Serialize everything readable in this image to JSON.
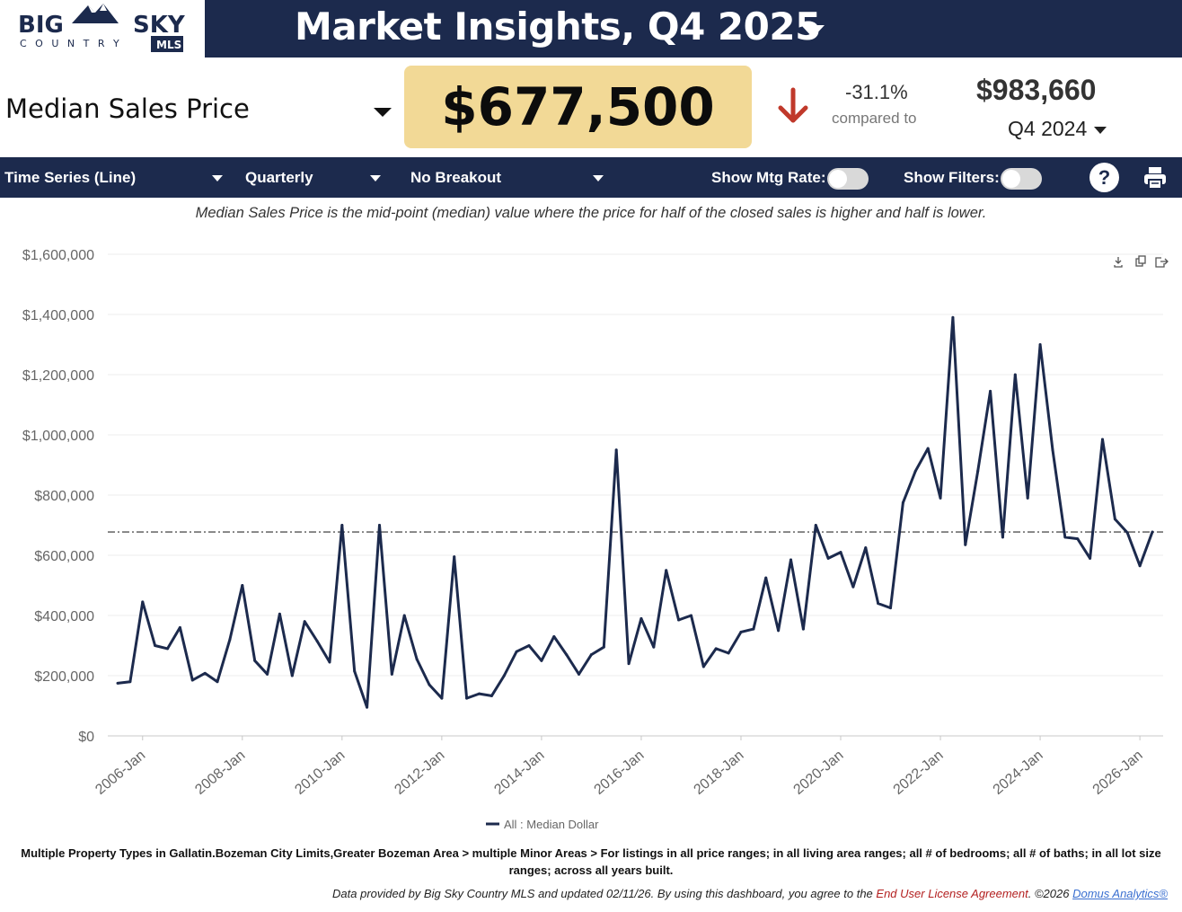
{
  "logo": {
    "line1": "BIG",
    "line1b": "SKY",
    "line2": "C O U N T R Y",
    "badge": "MLS"
  },
  "header": {
    "title": "Market Insights,  Q4  2025"
  },
  "metric": {
    "name": "Median Sales Price",
    "value": "$677,500",
    "change_pct": "-31.1%",
    "compared_label": "compared to",
    "compare_value": "$983,660",
    "compare_period": "Q4  2024",
    "trend": "down",
    "trend_color": "#c0392b"
  },
  "toolbar": {
    "chart_type": "Time Series (Line)",
    "interval": "Quarterly",
    "breakout": "No Breakout",
    "mtg_rate_label": "Show Mtg Rate:",
    "filters_label": "Show Filters:",
    "help_label": "?"
  },
  "description": "Median Sales Price is the mid-point (median) value where the price for half of the closed sales is higher and half is lower.",
  "chart_data": {
    "type": "line",
    "title": "",
    "xlabel": "",
    "ylabel": "",
    "ylim": [
      0,
      1600000
    ],
    "y_ticks": [
      0,
      200000,
      400000,
      600000,
      800000,
      1000000,
      1200000,
      1400000,
      1600000
    ],
    "y_tick_labels": [
      "$0",
      "$200,000",
      "$400,000",
      "$600,000",
      "$800,000",
      "$1,000,000",
      "$1,200,000",
      "$1,400,000",
      "$1,600,000"
    ],
    "x_tick_labels": [
      "2006-Jan",
      "2008-Jan",
      "2010-Jan",
      "2012-Jan",
      "2014-Jan",
      "2016-Jan",
      "2018-Jan",
      "2020-Jan",
      "2022-Jan",
      "2024-Jan",
      "2026-Jan"
    ],
    "x_start": "2005-Q3",
    "reference_line": 677500,
    "series": [
      {
        "name": "All : Median Dollar",
        "color": "#1c2a4d",
        "values": [
          175000,
          180000,
          445000,
          300000,
          290000,
          360000,
          185000,
          208000,
          180000,
          320000,
          500000,
          250000,
          205000,
          405000,
          200000,
          380000,
          315000,
          245000,
          700000,
          215000,
          95000,
          700000,
          205000,
          400000,
          255000,
          170000,
          125000,
          595000,
          125000,
          140000,
          133000,
          200000,
          280000,
          300000,
          250000,
          330000,
          270000,
          205000,
          270000,
          295000,
          950000,
          240000,
          390000,
          295000,
          550000,
          385000,
          400000,
          230000,
          290000,
          275000,
          345000,
          355000,
          525000,
          350000,
          585000,
          355000,
          700000,
          590000,
          610000,
          495000,
          625000,
          440000,
          425000,
          775000,
          880000,
          955000,
          790000,
          1390000,
          635000,
          880000,
          1145000,
          660000,
          1200000,
          790000,
          1300000,
          950000,
          660000,
          655000,
          590000,
          985000,
          720000,
          675000,
          565000,
          677500
        ]
      }
    ],
    "legend": "bottom-center"
  },
  "footnote": "Multiple Property Types in Gallatin.Bozeman City Limits,Greater Bozeman Area > multiple Minor Areas > For listings in all price ranges; in all living area ranges; all # of bedrooms; all # of baths; in all lot size ranges; across all years built.",
  "credits": {
    "text": "Data provided by Big Sky Country MLS and updated 02/11/26.  By using this dashboard, you agree to the ",
    "eula": "End User License Agreement",
    "copyright": ".  ©2026 ",
    "domus": "Domus Analytics®"
  },
  "icons": [
    "download-icon",
    "copy-icon",
    "share-icon",
    "print-icon",
    "help-icon",
    "arrow-down-icon",
    "caret-down-icon",
    "mountain-icon"
  ]
}
